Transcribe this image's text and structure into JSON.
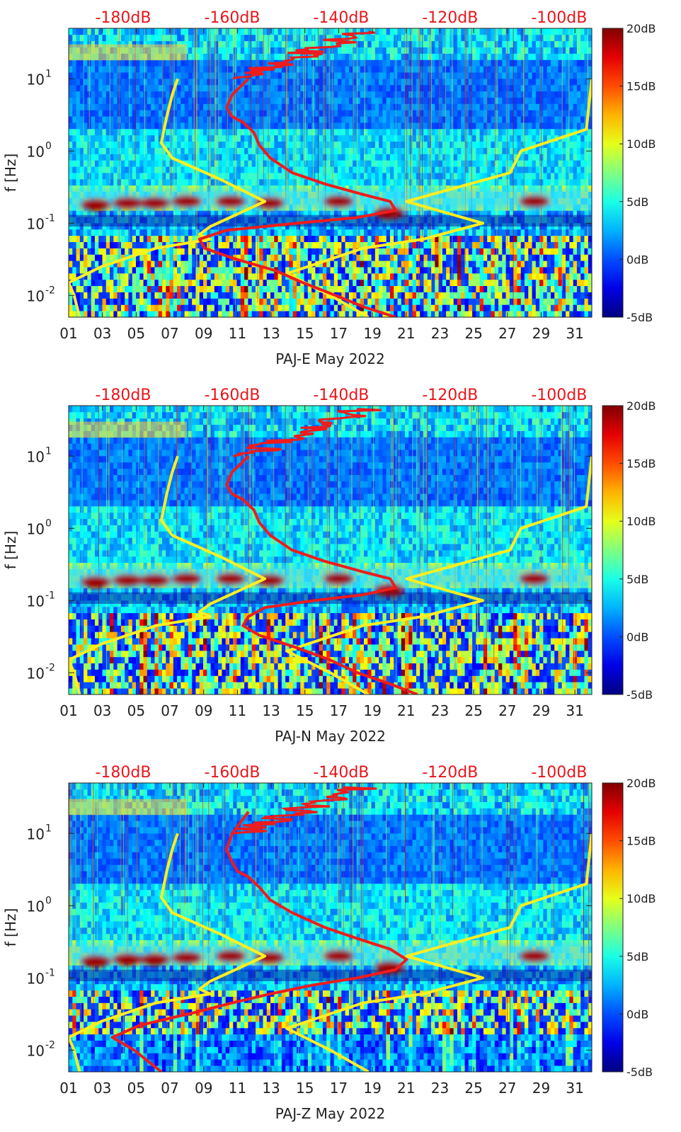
{
  "colors": {
    "background_low": "#00008f",
    "spectrogram_mid": "#1560ff",
    "psd_curve": "#ee1c1c",
    "noise_model": "#ffee22",
    "top_scale_text": "#e8161b"
  },
  "chart_data": [
    {
      "type": "heatmap",
      "name": "PAJ-E",
      "xlabel": "PAJ-E May 2022",
      "ylabel": "f [Hz]",
      "x_ticks": [
        "01",
        "03",
        "05",
        "07",
        "09",
        "11",
        "13",
        "15",
        "17",
        "19",
        "21",
        "23",
        "25",
        "27",
        "29",
        "31"
      ],
      "x_range": [
        1,
        32
      ],
      "y_scale": "log",
      "y_range": [
        0.005,
        50
      ],
      "y_ticks": [
        {
          "label": "10",
          "exp": "-2",
          "value": 0.01
        },
        {
          "label": "10",
          "exp": "-1",
          "value": 0.1
        },
        {
          "label": "10",
          "exp": "0",
          "value": 1
        },
        {
          "label": "10",
          "exp": "1",
          "value": 10
        }
      ],
      "colorbar": {
        "range": [
          -5,
          20
        ],
        "ticks": [
          "20dB",
          "15dB",
          "10dB",
          "5dB",
          "0dB",
          "-5dB"
        ]
      },
      "top_scale": {
        "ticks": [
          "-180dB",
          "-160dB",
          "-140dB",
          "-120dB",
          "-100dB"
        ],
        "range": [
          -190,
          -94
        ]
      },
      "psd_curve": {
        "x": [
          -130,
          -136,
          -141,
          -147,
          -152,
          -160,
          -165,
          -166,
          -161,
          -148,
          -137,
          -130,
          -131,
          -136,
          -143,
          -149,
          -153,
          -155,
          -156,
          -158,
          -160,
          -161,
          -160,
          -157
        ],
        "f": [
          0.005,
          0.007,
          0.01,
          0.015,
          0.022,
          0.033,
          0.045,
          0.06,
          0.08,
          0.1,
          0.12,
          0.15,
          0.2,
          0.25,
          0.35,
          0.5,
          0.8,
          1.2,
          1.8,
          2.5,
          3,
          4,
          6,
          10
        ]
      },
      "noise_models": [
        {
          "x": [
            -188,
            -189,
            -190,
            -184,
            -174,
            -164,
            -166,
            -164,
            -154,
            -162,
            -171,
            -173,
            -172,
            -171,
            -170
          ],
          "f": [
            0.005,
            0.01,
            0.015,
            0.025,
            0.045,
            0.06,
            0.07,
            0.09,
            0.2,
            0.4,
            0.8,
            1.3,
            3,
            6,
            10
          ]
        },
        {
          "x": [
            -135,
            -142,
            -150,
            -136,
            -125,
            -114,
            -128,
            -109,
            -107,
            -95,
            -94
          ],
          "f": [
            0.005,
            0.01,
            0.02,
            0.045,
            0.06,
            0.1,
            0.2,
            0.5,
            1,
            2,
            10
          ]
        }
      ],
      "hot_spots": [
        {
          "day": 2.6,
          "f": 0.18
        },
        {
          "day": 4.5,
          "f": 0.19
        },
        {
          "day": 6.1,
          "f": 0.19
        },
        {
          "day": 8.0,
          "f": 0.2
        },
        {
          "day": 10.6,
          "f": 0.2
        },
        {
          "day": 12.9,
          "f": 0.19
        },
        {
          "day": 17.0,
          "f": 0.2
        },
        {
          "day": 20.0,
          "f": 0.14
        },
        {
          "day": 28.6,
          "f": 0.2
        }
      ]
    },
    {
      "type": "heatmap",
      "name": "PAJ-N",
      "xlabel": "PAJ-N May 2022",
      "ylabel": "f [Hz]",
      "x_ticks": [
        "01",
        "03",
        "05",
        "07",
        "09",
        "11",
        "13",
        "15",
        "17",
        "19",
        "21",
        "23",
        "25",
        "27",
        "29",
        "31"
      ],
      "x_range": [
        1,
        32
      ],
      "y_scale": "log",
      "y_range": [
        0.005,
        50
      ],
      "y_ticks": [
        {
          "label": "10",
          "exp": "-2",
          "value": 0.01
        },
        {
          "label": "10",
          "exp": "-1",
          "value": 0.1
        },
        {
          "label": "10",
          "exp": "0",
          "value": 1
        },
        {
          "label": "10",
          "exp": "1",
          "value": 10
        }
      ],
      "colorbar": {
        "range": [
          -5,
          20
        ],
        "ticks": [
          "20dB",
          "15dB",
          "10dB",
          "5dB",
          "0dB",
          "-5dB"
        ]
      },
      "top_scale": {
        "ticks": [
          "-180dB",
          "-160dB",
          "-140dB",
          "-120dB",
          "-100dB"
        ],
        "range": [
          -190,
          -94
        ]
      },
      "psd_curve": {
        "x": [
          -126,
          -131,
          -137,
          -142,
          -148,
          -155,
          -158,
          -157,
          -154,
          -145,
          -136,
          -130,
          -131,
          -136,
          -143,
          -149,
          -153,
          -155,
          -156,
          -158,
          -160,
          -161,
          -160,
          -157
        ],
        "f": [
          0.005,
          0.007,
          0.01,
          0.015,
          0.022,
          0.033,
          0.045,
          0.06,
          0.08,
          0.1,
          0.12,
          0.15,
          0.2,
          0.25,
          0.35,
          0.5,
          0.8,
          1.2,
          1.8,
          2.5,
          3,
          4,
          6,
          10
        ]
      },
      "noise_models": [
        {
          "x": [
            -188,
            -189,
            -190,
            -184,
            -174,
            -164,
            -166,
            -164,
            -154,
            -162,
            -171,
            -173,
            -172,
            -171,
            -170
          ],
          "f": [
            0.005,
            0.01,
            0.015,
            0.025,
            0.045,
            0.06,
            0.07,
            0.09,
            0.2,
            0.4,
            0.8,
            1.3,
            3,
            6,
            10
          ]
        },
        {
          "x": [
            -135,
            -142,
            -150,
            -136,
            -125,
            -114,
            -128,
            -109,
            -107,
            -95,
            -94
          ],
          "f": [
            0.005,
            0.01,
            0.02,
            0.045,
            0.06,
            0.1,
            0.2,
            0.5,
            1,
            2,
            10
          ]
        }
      ],
      "hot_spots": [
        {
          "day": 2.6,
          "f": 0.18
        },
        {
          "day": 4.5,
          "f": 0.19
        },
        {
          "day": 6.1,
          "f": 0.19
        },
        {
          "day": 8.0,
          "f": 0.2
        },
        {
          "day": 10.6,
          "f": 0.2
        },
        {
          "day": 12.9,
          "f": 0.19
        },
        {
          "day": 17.0,
          "f": 0.2
        },
        {
          "day": 20.0,
          "f": 0.14
        },
        {
          "day": 28.6,
          "f": 0.2
        }
      ]
    },
    {
      "type": "heatmap",
      "name": "PAJ-Z",
      "xlabel": "PAJ-Z May 2022",
      "ylabel": "f [Hz]",
      "x_ticks": [
        "01",
        "03",
        "05",
        "07",
        "09",
        "11",
        "13",
        "15",
        "17",
        "19",
        "21",
        "23",
        "25",
        "27",
        "29",
        "31"
      ],
      "x_range": [
        1,
        32
      ],
      "y_scale": "log",
      "y_range": [
        0.005,
        50
      ],
      "y_ticks": [
        {
          "label": "10",
          "exp": "-2",
          "value": 0.01
        },
        {
          "label": "10",
          "exp": "-1",
          "value": 0.1
        },
        {
          "label": "10",
          "exp": "0",
          "value": 1
        },
        {
          "label": "10",
          "exp": "1",
          "value": 10
        }
      ],
      "colorbar": {
        "range": [
          -5,
          20
        ],
        "ticks": [
          "20dB",
          "15dB",
          "10dB",
          "5dB",
          "0dB",
          "-5dB"
        ]
      },
      "top_scale": {
        "ticks": [
          "-180dB",
          "-160dB",
          "-140dB",
          "-120dB",
          "-100dB"
        ],
        "range": [
          -190,
          -94
        ]
      },
      "psd_curve": {
        "x": [
          -173,
          -178,
          -182,
          -177,
          -167,
          -160,
          -153,
          -145,
          -137,
          -130,
          -128,
          -131,
          -137,
          -143,
          -149,
          -153,
          -155,
          -157,
          -159,
          -160,
          -161,
          -160,
          -157
        ],
        "f": [
          0.005,
          0.01,
          0.015,
          0.022,
          0.033,
          0.045,
          0.06,
          0.08,
          0.1,
          0.13,
          0.18,
          0.25,
          0.35,
          0.5,
          0.8,
          1.2,
          1.8,
          2.5,
          3,
          4,
          6,
          10,
          20
        ]
      },
      "noise_models": [
        {
          "x": [
            -188,
            -189,
            -190,
            -184,
            -174,
            -164,
            -166,
            -164,
            -154,
            -162,
            -171,
            -173,
            -172,
            -171,
            -170
          ],
          "f": [
            0.005,
            0.01,
            0.015,
            0.025,
            0.045,
            0.06,
            0.07,
            0.09,
            0.2,
            0.4,
            0.8,
            1.3,
            3,
            6,
            10
          ]
        },
        {
          "x": [
            -135,
            -142,
            -150,
            -136,
            -125,
            -114,
            -128,
            -109,
            -107,
            -95,
            -94
          ],
          "f": [
            0.005,
            0.01,
            0.02,
            0.045,
            0.06,
            0.1,
            0.2,
            0.5,
            1,
            2,
            10
          ]
        }
      ],
      "hot_spots": [
        {
          "day": 2.6,
          "f": 0.17
        },
        {
          "day": 4.5,
          "f": 0.18
        },
        {
          "day": 6.1,
          "f": 0.18
        },
        {
          "day": 8.0,
          "f": 0.19
        },
        {
          "day": 10.6,
          "f": 0.2
        },
        {
          "day": 12.9,
          "f": 0.19
        },
        {
          "day": 17.0,
          "f": 0.2
        },
        {
          "day": 20.0,
          "f": 0.14
        },
        {
          "day": 28.6,
          "f": 0.2
        }
      ]
    }
  ]
}
